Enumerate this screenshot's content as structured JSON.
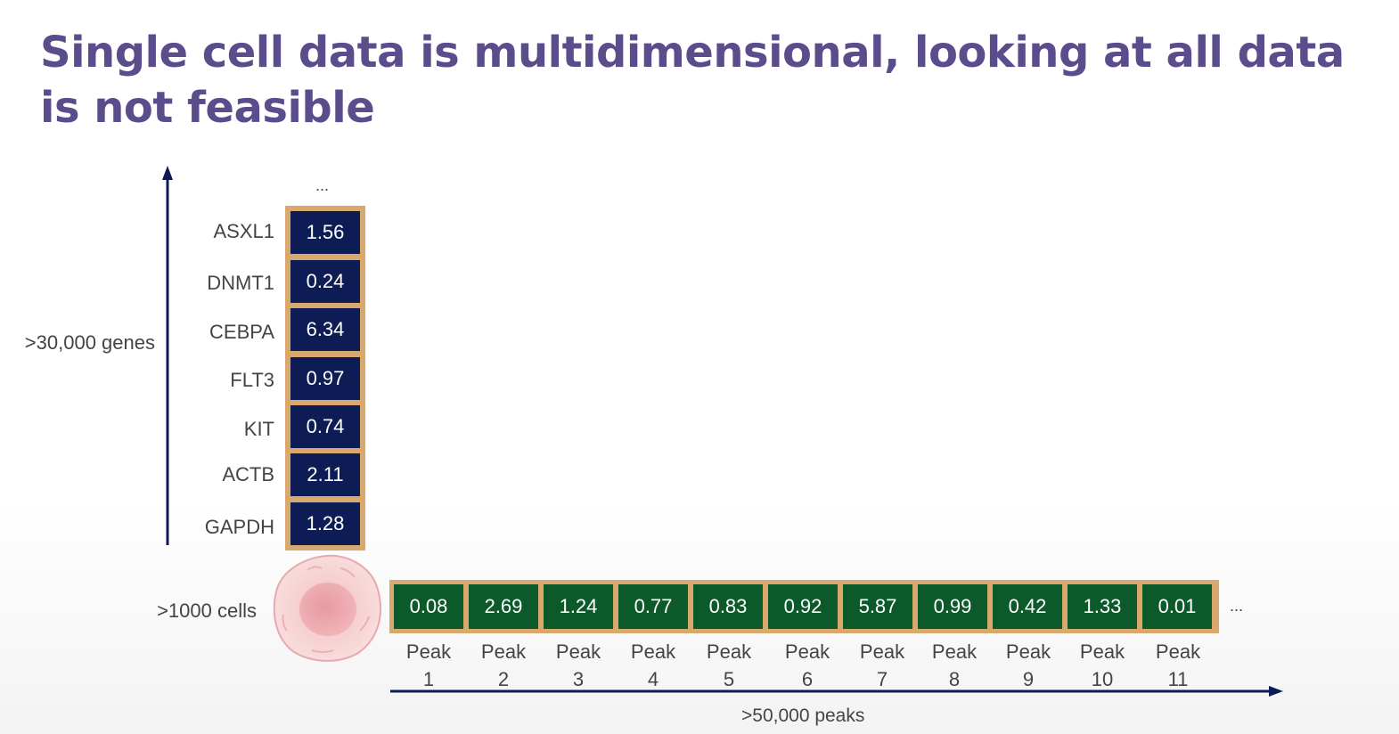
{
  "title": "Single cell data is multidimensional, looking at all data is not feasible",
  "genes_axis_label": ">30,000 genes",
  "cells_label": ">1000 cells",
  "peaks_axis_label": ">50,000 peaks",
  "ellipsis_top": "...",
  "ellipsis_right": "...",
  "genes": [
    {
      "name": "ASXL1",
      "value": "1.56"
    },
    {
      "name": "DNMT1",
      "value": "0.24"
    },
    {
      "name": "CEBPA",
      "value": "6.34"
    },
    {
      "name": "FLT3",
      "value": "0.97"
    },
    {
      "name": "KIT",
      "value": "0.74"
    },
    {
      "name": "ACTB",
      "value": "2.11"
    },
    {
      "name": "GAPDH",
      "value": "1.28"
    }
  ],
  "peaks": [
    {
      "word": "Peak",
      "num": "1",
      "value": "0.08"
    },
    {
      "word": "Peak",
      "num": "2",
      "value": "2.69"
    },
    {
      "word": "Peak",
      "num": "3",
      "value": "1.24"
    },
    {
      "word": "Peak",
      "num": "4",
      "value": "0.77"
    },
    {
      "word": "Peak",
      "num": "5",
      "value": "0.83"
    },
    {
      "word": "Peak",
      "num": "6",
      "value": "0.92"
    },
    {
      "word": "Peak",
      "num": "7",
      "value": "5.87"
    },
    {
      "word": "Peak",
      "num": "8",
      "value": "0.99"
    },
    {
      "word": "Peak",
      "num": "9",
      "value": "0.42"
    },
    {
      "word": "Peak",
      "num": "10",
      "value": "1.33"
    },
    {
      "word": "Peak",
      "num": "11",
      "value": "0.01"
    }
  ],
  "colors": {
    "title": "#5b4c8c",
    "gene_cell": "#0e1c56",
    "peak_cell": "#0c5a2a",
    "cell_border": "#d9a86c",
    "axis": "#0e1c56"
  }
}
